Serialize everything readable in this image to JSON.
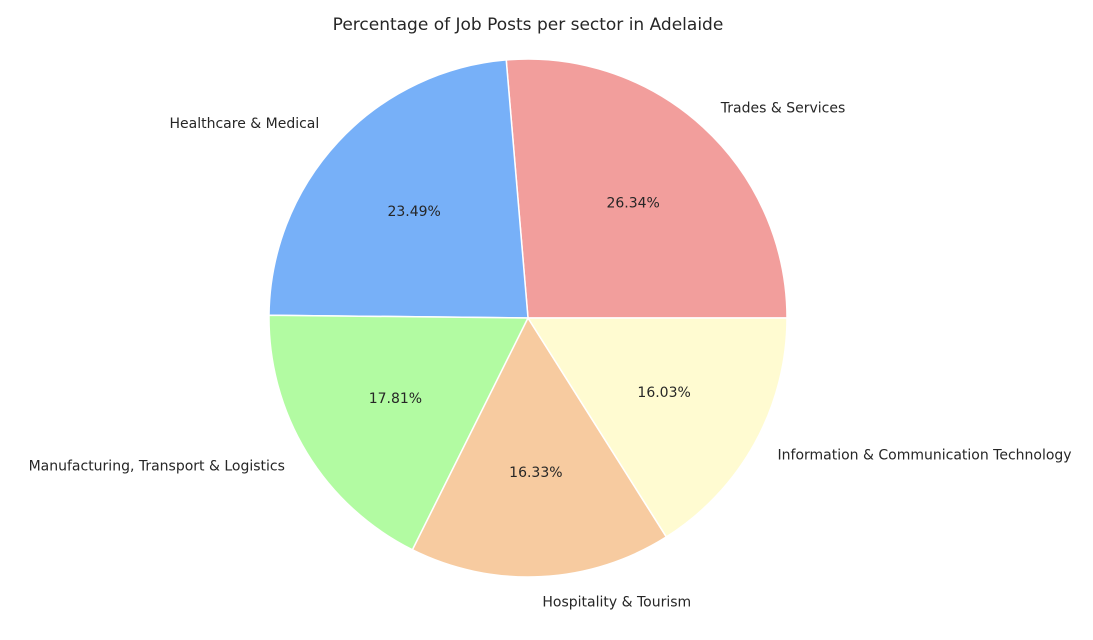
{
  "chart_data": {
    "type": "pie",
    "title": "Percentage of Job Posts per sector in Adelaide",
    "start_angle_deg": 0,
    "direction": "counterclockwise",
    "slices": [
      {
        "label": "Trades & Services",
        "value": 26.34,
        "pct_text": "26.34%",
        "color": "#f29e9c"
      },
      {
        "label": "Healthcare & Medical",
        "value": 23.49,
        "pct_text": "23.49%",
        "color": "#77b0f8"
      },
      {
        "label": "Manufacturing, Transport & Logistics",
        "value": 17.81,
        "pct_text": "17.81%",
        "color": "#b2fba2"
      },
      {
        "label": "Hospitality & Tourism",
        "value": 16.33,
        "pct_text": "16.33%",
        "color": "#f7cba0"
      },
      {
        "label": "Information & Communication Technology",
        "value": 16.03,
        "pct_text": "16.03%",
        "color": "#fffbd1"
      }
    ]
  }
}
